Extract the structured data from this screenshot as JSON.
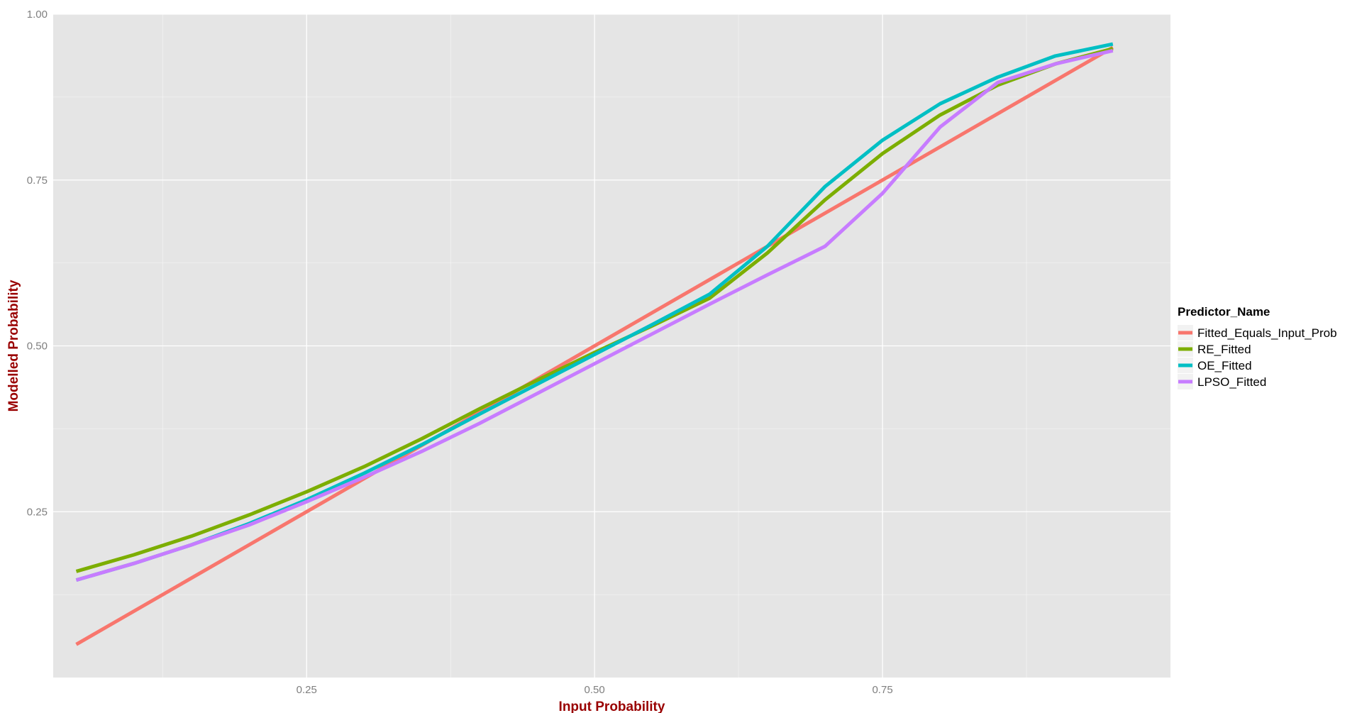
{
  "chart_data": {
    "type": "line",
    "title": "",
    "xlabel": "Input Probability",
    "ylabel": "Modelled Probability",
    "xlim": [
      0.03,
      1.0
    ],
    "ylim": [
      0.0,
      1.0
    ],
    "x_ticks": [
      0.25,
      0.5,
      0.75
    ],
    "x_tick_labels": [
      "0.25",
      "0.50",
      "0.75"
    ],
    "y_ticks": [
      0.25,
      0.5,
      0.75,
      1.0
    ],
    "y_tick_labels": [
      "0.25",
      "0.50",
      "0.75",
      "1.00"
    ],
    "grid": true,
    "legend_position": "right",
    "legend_title": "Predictor_Name",
    "colors": {
      "panel_background": "#e5e5e5",
      "grid": "#ffffff",
      "axis_title": "#990000"
    },
    "series": [
      {
        "name": "Fitted_Equals_Input_Prob",
        "color": "#f8766d",
        "x": [
          0.05,
          0.95
        ],
        "y": [
          0.05,
          0.95
        ]
      },
      {
        "name": "RE_Fitted",
        "color": "#7cae00",
        "x": [
          0.05,
          0.1,
          0.15,
          0.2,
          0.25,
          0.3,
          0.35,
          0.4,
          0.45,
          0.5,
          0.55,
          0.6,
          0.65,
          0.7,
          0.75,
          0.8,
          0.85,
          0.9,
          0.95
        ],
        "y": [
          0.16,
          0.185,
          0.213,
          0.245,
          0.28,
          0.318,
          0.36,
          0.405,
          0.448,
          0.49,
          0.53,
          0.572,
          0.64,
          0.72,
          0.79,
          0.848,
          0.893,
          0.925,
          0.948
        ]
      },
      {
        "name": "OE_Fitted",
        "color": "#00bfc4",
        "x": [
          0.05,
          0.1,
          0.15,
          0.2,
          0.25,
          0.3,
          0.35,
          0.4,
          0.45,
          0.5,
          0.55,
          0.6,
          0.65,
          0.7,
          0.75,
          0.8,
          0.85,
          0.9,
          0.95
        ],
        "y": [
          0.147,
          0.172,
          0.2,
          0.232,
          0.268,
          0.308,
          0.351,
          0.397,
          0.442,
          0.487,
          0.532,
          0.578,
          0.65,
          0.74,
          0.81,
          0.865,
          0.905,
          0.937,
          0.955
        ]
      },
      {
        "name": "LPSO_Fitted",
        "color": "#c77cff",
        "x": [
          0.05,
          0.1,
          0.15,
          0.2,
          0.25,
          0.3,
          0.35,
          0.4,
          0.45,
          0.5,
          0.55,
          0.6,
          0.65,
          0.7,
          0.75,
          0.8,
          0.85,
          0.9,
          0.95
        ],
        "y": [
          0.147,
          0.172,
          0.2,
          0.23,
          0.265,
          0.302,
          0.341,
          0.383,
          0.428,
          0.473,
          0.518,
          0.563,
          0.607,
          0.65,
          0.73,
          0.83,
          0.897,
          0.925,
          0.945
        ]
      }
    ]
  }
}
